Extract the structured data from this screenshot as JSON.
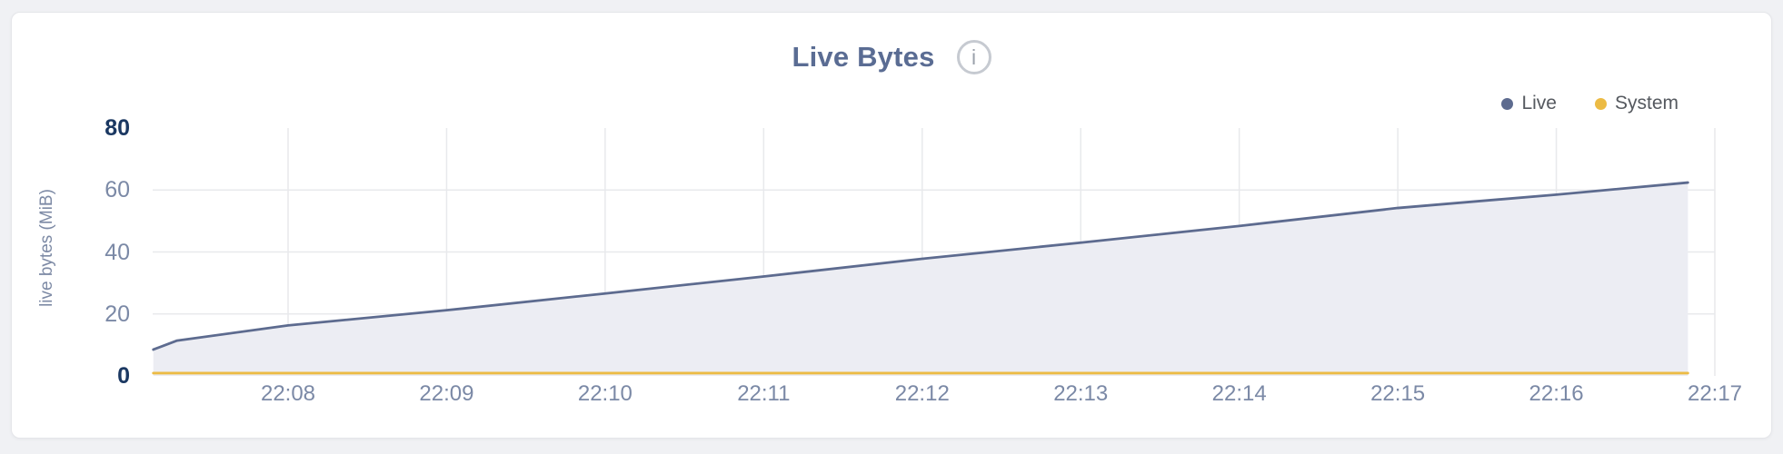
{
  "header": {
    "title": "Live Bytes",
    "info_glyph": "i"
  },
  "y_axis": {
    "label": "live bytes (MiB)"
  },
  "colors": {
    "live": "#5d6b8f",
    "system": "#ecbb44",
    "live_area_fill": "#ecedf3",
    "gridline": "#e8e9ec",
    "tick_label": "#7b89a6",
    "tick_label_bold": "#1b3862",
    "title": "#5a6c93"
  },
  "chart_data": {
    "type": "area",
    "title": "Live Bytes",
    "ylabel": "live bytes (MiB)",
    "xlabel": "",
    "ylim": [
      0,
      80
    ],
    "grid": true,
    "legend_position": "top-right",
    "x_unit": "time of day (HH:MM); numeric x = minutes after 22:00",
    "x_domain_minutes": [
      7.15,
      17
    ],
    "y_gridlines": [
      20,
      40,
      60
    ],
    "y_ticks": [
      {
        "label": "0",
        "value": 0,
        "bold": true
      },
      {
        "label": "20",
        "value": 20,
        "bold": false
      },
      {
        "label": "40",
        "value": 40,
        "bold": false
      },
      {
        "label": "60",
        "value": 60,
        "bold": false
      },
      {
        "label": "80",
        "value": 80,
        "bold": true
      }
    ],
    "x_ticks": [
      {
        "label": "22:08",
        "minute": 8
      },
      {
        "label": "22:09",
        "minute": 9
      },
      {
        "label": "22:10",
        "minute": 10
      },
      {
        "label": "22:11",
        "minute": 11
      },
      {
        "label": "22:12",
        "minute": 12
      },
      {
        "label": "22:13",
        "minute": 13
      },
      {
        "label": "22:14",
        "minute": 14
      },
      {
        "label": "22:15",
        "minute": 15
      },
      {
        "label": "22:16",
        "minute": 16
      },
      {
        "label": "22:17",
        "minute": 17
      }
    ],
    "series": [
      {
        "name": "Live",
        "color": "#5d6b8f",
        "area_fill": "#ecedf3",
        "points_x_minutes": [
          7.15,
          7.3,
          8,
          9,
          10,
          11,
          12,
          13,
          14,
          15,
          16,
          16.83
        ],
        "points_y_mib": [
          8.5,
          11.4,
          16.3,
          21.2,
          26.6,
          32.1,
          37.8,
          43.0,
          48.4,
          54.2,
          58.5,
          62.4
        ]
      },
      {
        "name": "System",
        "color": "#ecbb44",
        "area_fill": null,
        "points_x_minutes": [
          7.15,
          8,
          9,
          10,
          11,
          12,
          13,
          14,
          15,
          16,
          16.83
        ],
        "points_y_mib": [
          0.9,
          0.9,
          0.9,
          0.9,
          0.9,
          0.9,
          0.9,
          0.9,
          0.9,
          0.9,
          0.9
        ]
      }
    ]
  }
}
